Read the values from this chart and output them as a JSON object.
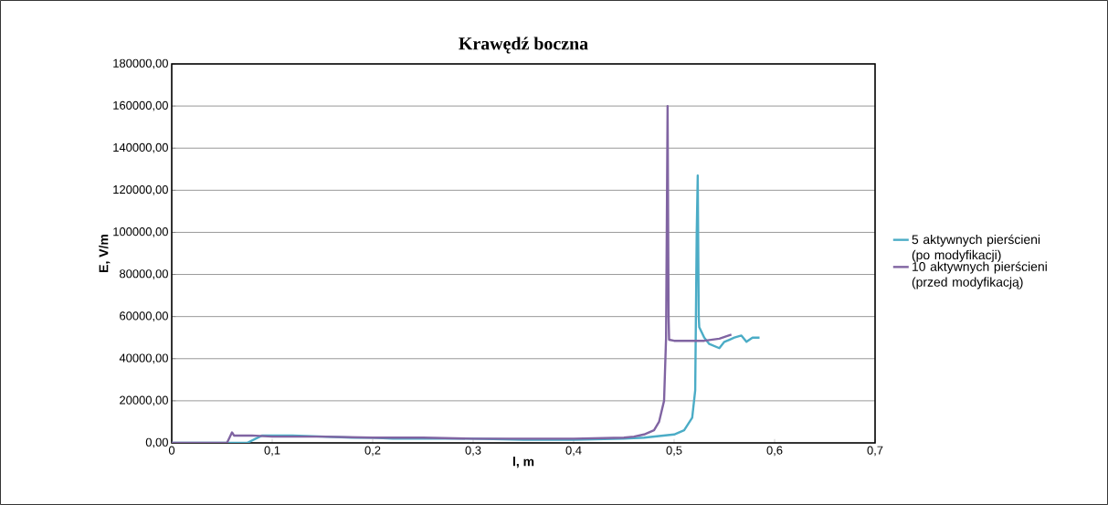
{
  "chart_data": {
    "type": "line",
    "title": "Krawędź boczna",
    "xlabel": "l, m",
    "ylabel": "E, V/m",
    "xlim": [
      0,
      0.7
    ],
    "ylim": [
      0,
      180000
    ],
    "xticks": [
      {
        "value": 0,
        "label": "0"
      },
      {
        "value": 0.1,
        "label": "0,1"
      },
      {
        "value": 0.2,
        "label": "0,2"
      },
      {
        "value": 0.3,
        "label": "0,3"
      },
      {
        "value": 0.4,
        "label": "0,4"
      },
      {
        "value": 0.5,
        "label": "0,5"
      },
      {
        "value": 0.6,
        "label": "0,6"
      },
      {
        "value": 0.7,
        "label": "0,7"
      }
    ],
    "yticks": [
      {
        "value": 0,
        "label": "0,00"
      },
      {
        "value": 20000,
        "label": "20000,00"
      },
      {
        "value": 40000,
        "label": "40000,00"
      },
      {
        "value": 60000,
        "label": "60000,00"
      },
      {
        "value": 80000,
        "label": "80000,00"
      },
      {
        "value": 100000,
        "label": "100000,00"
      },
      {
        "value": 120000,
        "label": "120000,00"
      },
      {
        "value": 140000,
        "label": "140000,00"
      },
      {
        "value": 160000,
        "label": "160000,00"
      },
      {
        "value": 180000,
        "label": "180000,00"
      }
    ],
    "grid": "y",
    "legend": "right",
    "marker": "none",
    "line_style": "solid",
    "series": [
      {
        "name": "5 aktywnych pierścieni (po modyfikacji)",
        "color": "#4bacc6",
        "x": [
          0,
          0.05,
          0.075,
          0.09,
          0.1,
          0.12,
          0.15,
          0.18,
          0.2,
          0.22,
          0.25,
          0.3,
          0.35,
          0.4,
          0.45,
          0.47,
          0.48,
          0.5,
          0.51,
          0.518,
          0.521,
          0.5225,
          0.5235,
          0.5245,
          0.525,
          0.53,
          0.535,
          0.54,
          0.545,
          0.55,
          0.555,
          0.56,
          0.567,
          0.572,
          0.578,
          0.58,
          0.585
        ],
        "values": [
          0,
          0,
          0,
          3500,
          3500,
          3500,
          3000,
          2500,
          2500,
          2000,
          2000,
          2000,
          1500,
          1500,
          2000,
          2500,
          3000,
          4000,
          6000,
          12000,
          25000,
          100000,
          127000,
          60000,
          55000,
          50000,
          47000,
          46000,
          45000,
          48000,
          49000,
          50000,
          51000,
          48000,
          50000,
          50000,
          50000
        ]
      },
      {
        "name": "10 aktywnych pierścieni (przed modyfikacją)",
        "color": "#8064a2",
        "x": [
          0,
          0.055,
          0.06,
          0.062,
          0.08,
          0.1,
          0.12,
          0.15,
          0.2,
          0.25,
          0.3,
          0.35,
          0.4,
          0.45,
          0.46,
          0.47,
          0.48,
          0.485,
          0.49,
          0.492,
          0.4935,
          0.4945,
          0.495,
          0.5,
          0.51,
          0.53,
          0.545,
          0.557
        ],
        "values": [
          0,
          0,
          5000,
          3500,
          3500,
          3000,
          3000,
          3000,
          2500,
          2500,
          2000,
          2000,
          2000,
          2500,
          3000,
          4000,
          6000,
          10000,
          20000,
          50000,
          160000,
          60000,
          49000,
          48500,
          48500,
          48500,
          49500,
          51500
        ]
      }
    ]
  }
}
